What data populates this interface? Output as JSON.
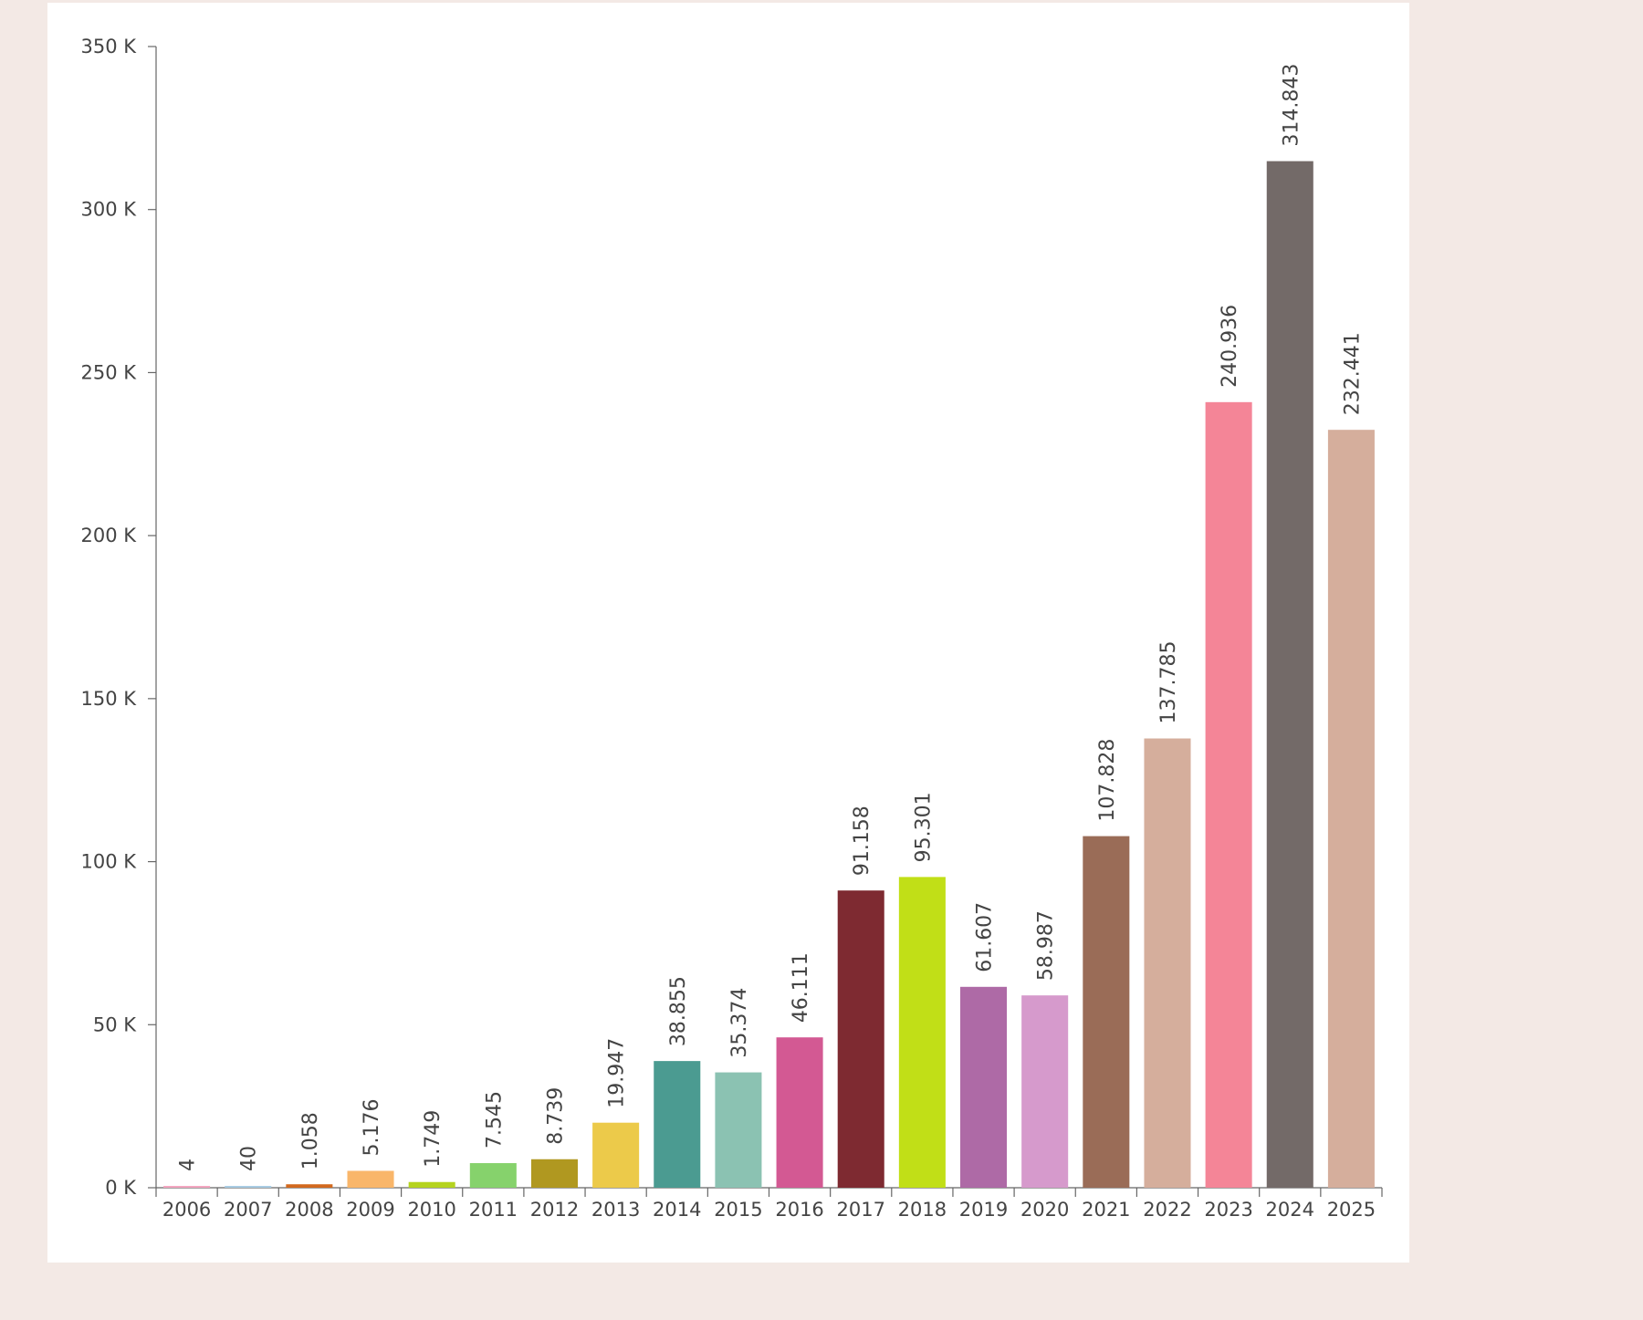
{
  "chart_data": {
    "type": "bar",
    "title": "",
    "xlabel": "",
    "ylabel": "",
    "ylim": [
      0,
      350000
    ],
    "yticks": [
      {
        "value": 0,
        "label": "0 K"
      },
      {
        "value": 50000,
        "label": "50 K"
      },
      {
        "value": 100000,
        "label": "100 K"
      },
      {
        "value": 150000,
        "label": "150 K"
      },
      {
        "value": 200000,
        "label": "200 K"
      },
      {
        "value": 250000,
        "label": "250 K"
      },
      {
        "value": 300000,
        "label": "300 K"
      },
      {
        "value": 350000,
        "label": "350 K"
      }
    ],
    "grid": false,
    "legend": "none",
    "categories": [
      "2006",
      "2007",
      "2008",
      "2009",
      "2010",
      "2011",
      "2012",
      "2013",
      "2014",
      "2015",
      "2016",
      "2017",
      "2018",
      "2019",
      "2020",
      "2021",
      "2022",
      "2023",
      "2024",
      "2025"
    ],
    "values": [
      4,
      40,
      1058,
      5176,
      1749,
      7545,
      8739,
      19947,
      38855,
      35374,
      46111,
      91158,
      95301,
      61607,
      58987,
      107828,
      137785,
      240936,
      314843,
      232441
    ],
    "data_labels": [
      "4",
      "40",
      "1.058",
      "5.176",
      "1.749",
      "7.545",
      "8.739",
      "19.947",
      "38.855",
      "35.374",
      "46.111",
      "91.158",
      "95.301",
      "61.607",
      "58.987",
      "107.828",
      "137.785",
      "240.936",
      "314.843",
      "232.441"
    ],
    "colors": [
      "#f4a6c0",
      "#a9cce3",
      "#d2691e",
      "#f9b66a",
      "#b5d31f",
      "#86d26c",
      "#b09820",
      "#ecca4a",
      "#4b9b91",
      "#8bc2b2",
      "#d35993",
      "#7e2a31",
      "#c1df17",
      "#ae6aa6",
      "#d69acc",
      "#9a6c57",
      "#d5ae9c",
      "#f48597",
      "#736a68",
      "#d5ae9c"
    ]
  }
}
